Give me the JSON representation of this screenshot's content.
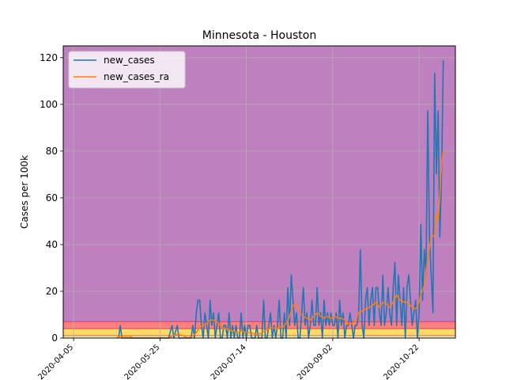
{
  "chart_data": {
    "type": "line",
    "title": "Minnesota - Houston",
    "xlabel": "",
    "ylabel": "Cases per 100k",
    "xlim": [
      "2020-03-30",
      "2020-11-12"
    ],
    "ylim": [
      0,
      125
    ],
    "x_ticks": [
      "2020-04-05",
      "2020-05-25",
      "2020-07-14",
      "2020-09-02",
      "2020-10-22"
    ],
    "y_ticks": [
      0,
      20,
      40,
      60,
      80,
      100,
      120
    ],
    "grid": true,
    "legend_position": "top-left",
    "background_bands": [
      {
        "from": 0,
        "to": 1,
        "color": "#ffffb3"
      },
      {
        "from": 1,
        "to": 4,
        "color": "#ffdb66"
      },
      {
        "from": 4,
        "to": 7,
        "color": "#ff7f7f"
      },
      {
        "from": 7,
        "to": 125,
        "color": "#bf80bf"
      }
    ],
    "band_edge_color": "#d62a5a",
    "series": [
      {
        "name": "new_cases",
        "color": "#1f77b4",
        "points": [
          [
            "2020-05-01",
            0
          ],
          [
            "2020-05-02",
            5.4
          ],
          [
            "2020-05-03",
            0
          ],
          [
            "2020-05-06",
            0
          ],
          [
            "2020-05-30",
            0
          ],
          [
            "2020-06-01",
            5.4
          ],
          [
            "2020-06-02",
            0
          ],
          [
            "2020-06-04",
            5.4
          ],
          [
            "2020-06-05",
            0
          ],
          [
            "2020-06-12",
            0
          ],
          [
            "2020-06-13",
            5.4
          ],
          [
            "2020-06-14",
            0
          ],
          [
            "2020-06-15",
            10.8
          ],
          [
            "2020-06-16",
            16.2
          ],
          [
            "2020-06-17",
            16.2
          ],
          [
            "2020-06-18",
            5.4
          ],
          [
            "2020-06-19",
            0
          ],
          [
            "2020-06-20",
            10.8
          ],
          [
            "2020-06-21",
            5.4
          ],
          [
            "2020-06-22",
            0
          ],
          [
            "2020-06-23",
            16.2
          ],
          [
            "2020-06-24",
            5.4
          ],
          [
            "2020-06-25",
            10.8
          ],
          [
            "2020-06-26",
            0
          ],
          [
            "2020-06-27",
            5.4
          ],
          [
            "2020-06-28",
            10.8
          ],
          [
            "2020-06-29",
            0
          ],
          [
            "2020-06-30",
            0
          ],
          [
            "2020-07-01",
            5.4
          ],
          [
            "2020-07-02",
            5.4
          ],
          [
            "2020-07-03",
            0
          ],
          [
            "2020-07-04",
            10.8
          ],
          [
            "2020-07-05",
            0
          ],
          [
            "2020-07-06",
            5.4
          ],
          [
            "2020-07-07",
            0
          ],
          [
            "2020-07-08",
            5.4
          ],
          [
            "2020-07-09",
            0
          ],
          [
            "2020-07-10",
            0
          ],
          [
            "2020-07-11",
            10.8
          ],
          [
            "2020-07-12",
            0
          ],
          [
            "2020-07-13",
            5.4
          ],
          [
            "2020-07-14",
            0
          ],
          [
            "2020-07-15",
            5.4
          ],
          [
            "2020-07-16",
            5.4
          ],
          [
            "2020-07-17",
            0
          ],
          [
            "2020-07-18",
            0
          ],
          [
            "2020-07-19",
            0
          ],
          [
            "2020-07-20",
            5.4
          ],
          [
            "2020-07-21",
            0
          ],
          [
            "2020-07-22",
            0
          ],
          [
            "2020-07-23",
            0
          ],
          [
            "2020-07-24",
            16.2
          ],
          [
            "2020-07-25",
            0
          ],
          [
            "2020-07-26",
            0
          ],
          [
            "2020-07-27",
            5.4
          ],
          [
            "2020-07-28",
            10.8
          ],
          [
            "2020-07-29",
            0
          ],
          [
            "2020-07-30",
            5.4
          ],
          [
            "2020-07-31",
            0
          ],
          [
            "2020-08-01",
            5.4
          ],
          [
            "2020-08-02",
            16.2
          ],
          [
            "2020-08-03",
            0
          ],
          [
            "2020-08-04",
            0
          ],
          [
            "2020-08-05",
            10.8
          ],
          [
            "2020-08-06",
            0
          ],
          [
            "2020-08-07",
            21.6
          ],
          [
            "2020-08-08",
            5.4
          ],
          [
            "2020-08-09",
            27
          ],
          [
            "2020-08-10",
            16.2
          ],
          [
            "2020-08-11",
            5.4
          ],
          [
            "2020-08-12",
            10.8
          ],
          [
            "2020-08-13",
            0
          ],
          [
            "2020-08-14",
            0
          ],
          [
            "2020-08-15",
            10.8
          ],
          [
            "2020-08-16",
            21.6
          ],
          [
            "2020-08-17",
            5.4
          ],
          [
            "2020-08-18",
            10.8
          ],
          [
            "2020-08-19",
            0
          ],
          [
            "2020-08-20",
            5.4
          ],
          [
            "2020-08-21",
            16.2
          ],
          [
            "2020-08-22",
            5.4
          ],
          [
            "2020-08-23",
            5.4
          ],
          [
            "2020-08-24",
            21.6
          ],
          [
            "2020-08-25",
            5.4
          ],
          [
            "2020-08-26",
            10.8
          ],
          [
            "2020-08-27",
            0
          ],
          [
            "2020-08-28",
            16.2
          ],
          [
            "2020-08-29",
            5.4
          ],
          [
            "2020-08-30",
            10.8
          ],
          [
            "2020-08-31",
            5.4
          ],
          [
            "2020-09-01",
            10.8
          ],
          [
            "2020-09-02",
            5.4
          ],
          [
            "2020-09-03",
            5.4
          ],
          [
            "2020-09-04",
            10.8
          ],
          [
            "2020-09-05",
            0
          ],
          [
            "2020-09-06",
            16.2
          ],
          [
            "2020-09-07",
            5.4
          ],
          [
            "2020-09-08",
            10.8
          ],
          [
            "2020-09-09",
            0
          ],
          [
            "2020-09-10",
            5.4
          ],
          [
            "2020-09-11",
            5.4
          ],
          [
            "2020-09-12",
            10.8
          ],
          [
            "2020-09-13",
            5.4
          ],
          [
            "2020-09-14",
            0
          ],
          [
            "2020-09-15",
            5.4
          ],
          [
            "2020-09-16",
            5.4
          ],
          [
            "2020-09-17",
            10.8
          ],
          [
            "2020-09-18",
            37.8
          ],
          [
            "2020-09-19",
            5.4
          ],
          [
            "2020-09-20",
            0
          ],
          [
            "2020-09-21",
            16.2
          ],
          [
            "2020-09-22",
            21.6
          ],
          [
            "2020-09-23",
            5.4
          ],
          [
            "2020-09-24",
            16.2
          ],
          [
            "2020-09-25",
            21.6
          ],
          [
            "2020-09-26",
            5.4
          ],
          [
            "2020-09-27",
            21.6
          ],
          [
            "2020-09-28",
            21.6
          ],
          [
            "2020-09-29",
            10.8
          ],
          [
            "2020-09-30",
            5.4
          ],
          [
            "2020-10-01",
            27
          ],
          [
            "2020-10-02",
            5.4
          ],
          [
            "2020-10-03",
            10.8
          ],
          [
            "2020-10-04",
            21.6
          ],
          [
            "2020-10-05",
            10.8
          ],
          [
            "2020-10-06",
            5.4
          ],
          [
            "2020-10-07",
            21.6
          ],
          [
            "2020-10-08",
            32.4
          ],
          [
            "2020-10-09",
            5.4
          ],
          [
            "2020-10-10",
            27
          ],
          [
            "2020-10-11",
            16.2
          ],
          [
            "2020-10-12",
            5.4
          ],
          [
            "2020-10-13",
            21.6
          ],
          [
            "2020-10-14",
            0
          ],
          [
            "2020-10-15",
            21.6
          ],
          [
            "2020-10-16",
            27
          ],
          [
            "2020-10-17",
            16.2
          ],
          [
            "2020-10-18",
            5.4
          ],
          [
            "2020-10-19",
            10.8
          ],
          [
            "2020-10-20",
            16.2
          ],
          [
            "2020-10-21",
            0
          ],
          [
            "2020-10-22",
            10.8
          ],
          [
            "2020-10-23",
            48.6
          ],
          [
            "2020-10-24",
            16.2
          ],
          [
            "2020-10-25",
            37.8
          ],
          [
            "2020-10-26",
            27
          ],
          [
            "2020-10-27",
            97.2
          ],
          [
            "2020-10-28",
            43.2
          ],
          [
            "2020-10-29",
            27
          ],
          [
            "2020-10-30",
            10.8
          ],
          [
            "2020-10-31",
            113.4
          ],
          [
            "2020-11-01",
            70.2
          ],
          [
            "2020-11-02",
            97.2
          ],
          [
            "2020-11-03",
            43.2
          ],
          [
            "2020-11-04",
            70.2
          ],
          [
            "2020-11-05",
            118.8
          ]
        ]
      },
      {
        "name": "new_cases_ra",
        "color": "#ff7f0e",
        "points": [
          [
            "2020-04-30",
            0
          ],
          [
            "2020-05-02",
            0.8
          ],
          [
            "2020-05-05",
            0.8
          ],
          [
            "2020-05-08",
            0.8
          ],
          [
            "2020-05-09",
            0
          ],
          [
            "2020-05-30",
            0
          ],
          [
            "2020-06-01",
            0.8
          ],
          [
            "2020-06-03",
            1.5
          ],
          [
            "2020-06-05",
            1.5
          ],
          [
            "2020-06-08",
            0.8
          ],
          [
            "2020-06-10",
            0
          ],
          [
            "2020-06-13",
            0.8
          ],
          [
            "2020-06-15",
            2.3
          ],
          [
            "2020-06-17",
            4.6
          ],
          [
            "2020-06-19",
            5.4
          ],
          [
            "2020-06-21",
            6.2
          ],
          [
            "2020-06-23",
            7.7
          ],
          [
            "2020-06-25",
            7.7
          ],
          [
            "2020-06-27",
            6.9
          ],
          [
            "2020-06-29",
            5.4
          ],
          [
            "2020-07-01",
            3.9
          ],
          [
            "2020-07-03",
            3.9
          ],
          [
            "2020-07-05",
            3.1
          ],
          [
            "2020-07-07",
            3.1
          ],
          [
            "2020-07-09",
            2.3
          ],
          [
            "2020-07-11",
            3.1
          ],
          [
            "2020-07-13",
            2.3
          ],
          [
            "2020-07-15",
            2.3
          ],
          [
            "2020-07-17",
            2.3
          ],
          [
            "2020-07-19",
            1.5
          ],
          [
            "2020-07-21",
            1.5
          ],
          [
            "2020-07-23",
            2.3
          ],
          [
            "2020-07-25",
            3.1
          ],
          [
            "2020-07-27",
            3.9
          ],
          [
            "2020-07-29",
            4.6
          ],
          [
            "2020-07-31",
            3.9
          ],
          [
            "2020-08-02",
            4.6
          ],
          [
            "2020-08-04",
            4.6
          ],
          [
            "2020-08-06",
            6.2
          ],
          [
            "2020-08-08",
            9.3
          ],
          [
            "2020-08-10",
            13.9
          ],
          [
            "2020-08-12",
            14.7
          ],
          [
            "2020-08-14",
            10.8
          ],
          [
            "2020-08-16",
            9.3
          ],
          [
            "2020-08-18",
            8.5
          ],
          [
            "2020-08-20",
            7.7
          ],
          [
            "2020-08-22",
            9.3
          ],
          [
            "2020-08-24",
            10.8
          ],
          [
            "2020-08-26",
            9.3
          ],
          [
            "2020-08-28",
            8.5
          ],
          [
            "2020-08-30",
            9.3
          ],
          [
            "2020-09-01",
            8.5
          ],
          [
            "2020-09-03",
            9.3
          ],
          [
            "2020-09-05",
            8.5
          ],
          [
            "2020-09-07",
            8.5
          ],
          [
            "2020-09-09",
            7.7
          ],
          [
            "2020-09-11",
            6.2
          ],
          [
            "2020-09-13",
            6.2
          ],
          [
            "2020-09-15",
            6.9
          ],
          [
            "2020-09-17",
            10.8
          ],
          [
            "2020-09-19",
            11.6
          ],
          [
            "2020-09-21",
            12.4
          ],
          [
            "2020-09-23",
            13.1
          ],
          [
            "2020-09-25",
            13.9
          ],
          [
            "2020-09-27",
            15.4
          ],
          [
            "2020-09-29",
            13.1
          ],
          [
            "2020-10-01",
            15.4
          ],
          [
            "2020-10-03",
            14.7
          ],
          [
            "2020-10-05",
            13.1
          ],
          [
            "2020-10-07",
            15.4
          ],
          [
            "2020-10-09",
            18.5
          ],
          [
            "2020-10-11",
            16.2
          ],
          [
            "2020-10-13",
            15.4
          ],
          [
            "2020-10-15",
            15.4
          ],
          [
            "2020-10-17",
            13.9
          ],
          [
            "2020-10-19",
            12.4
          ],
          [
            "2020-10-21",
            13.1
          ],
          [
            "2020-10-23",
            18.5
          ],
          [
            "2020-10-25",
            22.4
          ],
          [
            "2020-10-27",
            34
          ],
          [
            "2020-10-29",
            43.2
          ],
          [
            "2020-10-31",
            44
          ],
          [
            "2020-11-01",
            53.3
          ],
          [
            "2020-11-02",
            50.2
          ],
          [
            "2020-11-03",
            61
          ],
          [
            "2020-11-04",
            75
          ],
          [
            "2020-11-05",
            80.3
          ]
        ]
      }
    ]
  }
}
